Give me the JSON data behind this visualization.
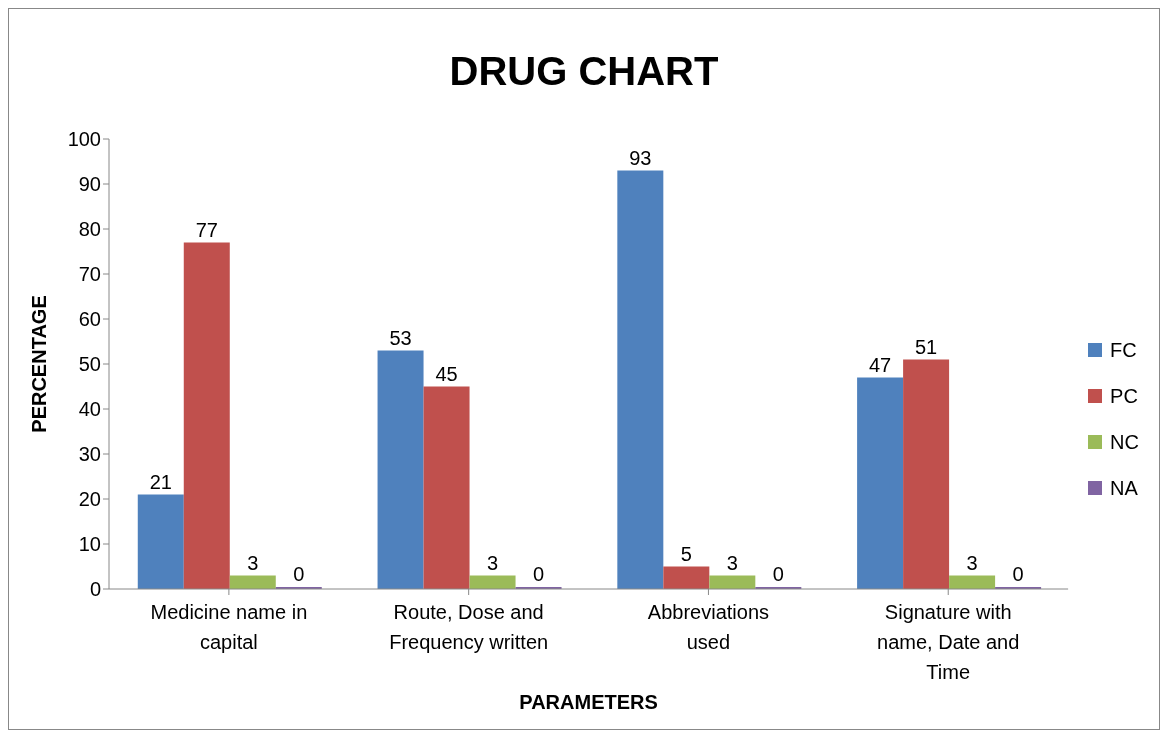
{
  "chart_data": {
    "type": "bar",
    "title": "DRUG CHART",
    "xlabel": "PARAMETERS",
    "ylabel": "PERCENTAGE",
    "categories": [
      "Medicine name in capital",
      "Route, Dose and Frequency written",
      "Abbreviations used",
      "Signature with name, Date and Time"
    ],
    "series": [
      {
        "name": "FC",
        "color": "#4f81bd",
        "values": [
          21,
          53,
          93,
          47
        ]
      },
      {
        "name": "PC",
        "color": "#c0504d",
        "values": [
          77,
          45,
          5,
          51
        ]
      },
      {
        "name": "NC",
        "color": "#9bbb59",
        "values": [
          3,
          3,
          3,
          3
        ]
      },
      {
        "name": "NA",
        "color": "#8064a2",
        "values": [
          0,
          0,
          0,
          0
        ]
      }
    ],
    "ylim": [
      0,
      100
    ],
    "yticks": [
      0,
      10,
      20,
      30,
      40,
      50,
      60,
      70,
      80,
      90,
      100
    ],
    "grid": false,
    "legend": "right",
    "data_labels": true
  }
}
